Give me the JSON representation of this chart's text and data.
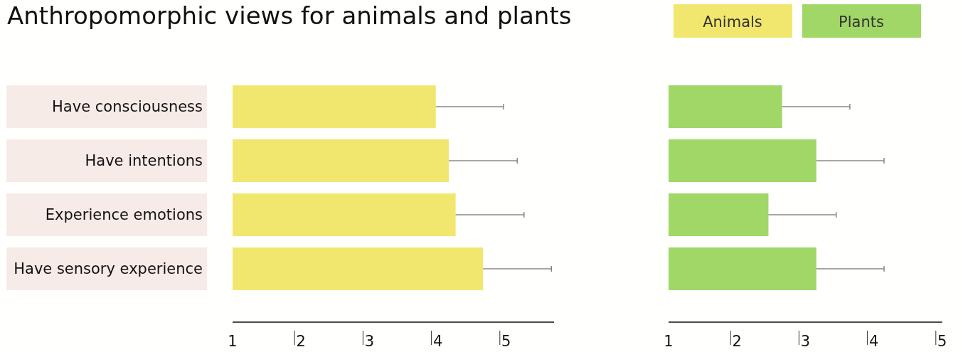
{
  "chart_data": [
    {
      "type": "bar",
      "orientation": "horizontal",
      "title": "Anthropomorphic views for animals and plants",
      "categories": [
        "Have consciousness",
        "Have intentions",
        "Experience emotions",
        "Have sensory experience"
      ],
      "series": [
        {
          "name": "Animals",
          "color": "#f2e76e",
          "values": [
            3.97,
            4.16,
            4.26,
            4.66
          ],
          "errors": [
            [
              3.97,
              4.96
            ],
            [
              4.16,
              5.16
            ],
            [
              4.26,
              5.26
            ],
            [
              4.66,
              5.66
            ]
          ]
        }
      ],
      "xlim": [
        1,
        5.7
      ],
      "xticks": [
        1,
        2,
        3,
        4,
        5
      ],
      "legend": "top right",
      "grid": false
    },
    {
      "type": "bar",
      "orientation": "horizontal",
      "categories": [
        null,
        null,
        null,
        null
      ],
      "series": [
        {
          "name": "Plants",
          "color": "#a0d766",
          "values": [
            2.66,
            3.16,
            2.46,
            3.16
          ],
          "errors": [
            [
              2.66,
              3.65
            ],
            [
              3.16,
              4.15
            ],
            [
              2.46,
              3.45
            ],
            [
              3.16,
              4.15
            ]
          ]
        }
      ],
      "xlim": [
        1,
        5
      ],
      "xticks": [
        1,
        2,
        3,
        4,
        5
      ],
      "legend": "top right",
      "grid": false
    }
  ]
}
